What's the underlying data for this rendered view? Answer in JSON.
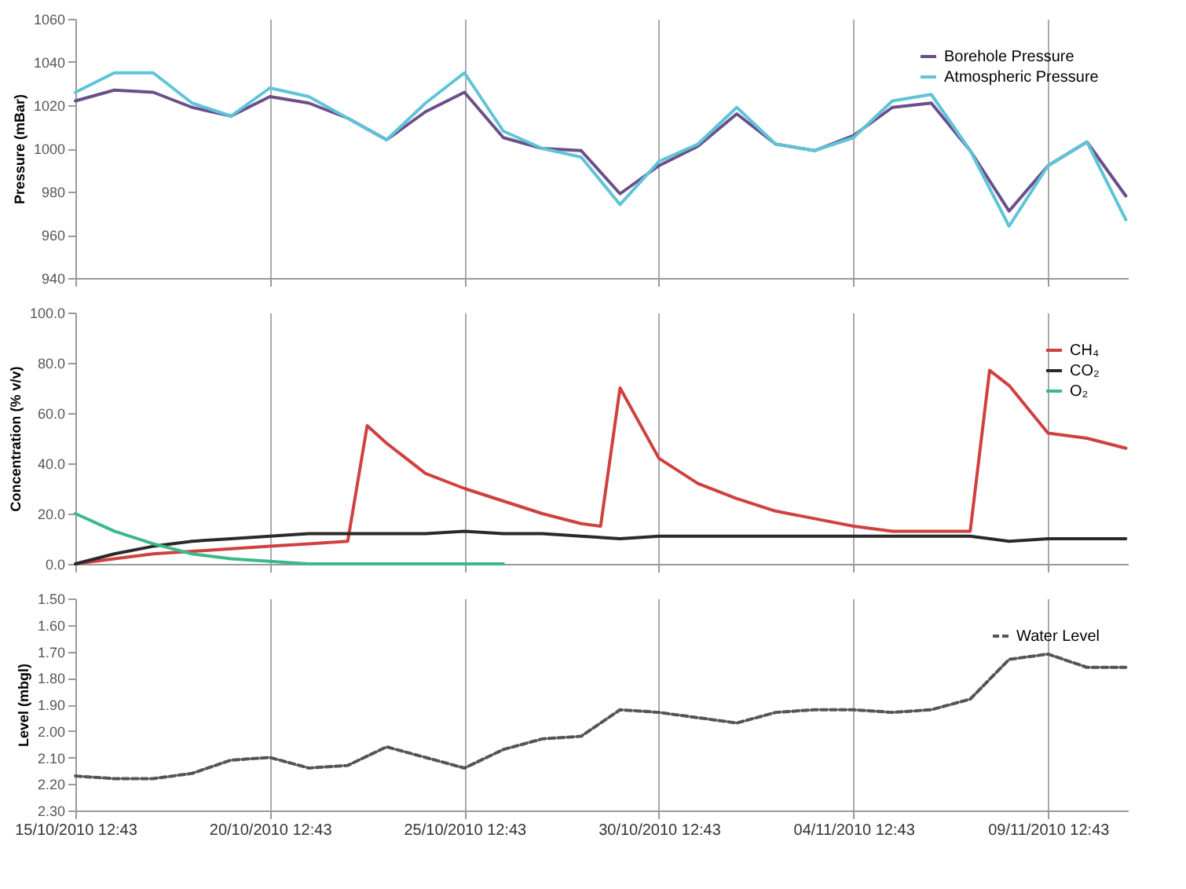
{
  "chart_data": [
    {
      "type": "line",
      "ylabel": "Pressure (mBar)",
      "grid": "x",
      "legend": "top right",
      "tick_labels": "y",
      "x": [
        "2010-10-15T12:43",
        "2010-10-16T12:43",
        "2010-10-17T12:43",
        "2010-10-18T12:43",
        "2010-10-19T12:43",
        "2010-10-20T12:43",
        "2010-10-21T12:43",
        "2010-10-22T12:43",
        "2010-10-23T12:43",
        "2010-10-24T12:43",
        "2010-10-25T12:43",
        "2010-10-26T12:43",
        "2010-10-27T12:43",
        "2010-10-28T12:43",
        "2010-10-29T12:43",
        "2010-10-30T12:43",
        "2010-10-31T12:43",
        "2010-11-01T12:43",
        "2010-11-02T12:43",
        "2010-11-03T12:43",
        "2010-11-04T12:43",
        "2010-11-05T12:43",
        "2010-11-06T12:43",
        "2010-11-07T12:43",
        "2010-11-08T12:43",
        "2010-11-09T12:43",
        "2010-11-10T12:43",
        "2010-11-11T12:43"
      ],
      "xlim": [
        "2010-10-15T12:43",
        "2010-11-11T14:00"
      ],
      "xticks": [
        {
          "value": "2010-10-15T12:43",
          "label": null
        },
        {
          "value": "2010-10-20T12:43",
          "label": null
        },
        {
          "value": "2010-10-25T12:43",
          "label": null
        },
        {
          "value": "2010-10-30T12:43",
          "label": null
        },
        {
          "value": "2010-11-04T12:43",
          "label": null
        },
        {
          "value": "2010-11-09T12:43",
          "label": null
        }
      ],
      "ylim": [
        940,
        1060
      ],
      "yticks": [
        940,
        960,
        980,
        1000,
        1020,
        1040,
        1060
      ],
      "series": [
        {
          "name": "Borehole Pressure",
          "color": "#6b4f8a",
          "values": [
            1022,
            1027,
            1026,
            1019,
            1015,
            1024,
            1021,
            1014,
            1004,
            1017,
            1026,
            1005,
            1000,
            999,
            979,
            992,
            1001,
            1016,
            1002,
            999,
            1006,
            1019,
            1021,
            999,
            971,
            992,
            1003,
            978
          ]
        },
        {
          "name": "Atmospheric Pressure",
          "color": "#5fc4d8",
          "values": [
            1026,
            1035,
            1035,
            1021,
            1015,
            1028,
            1024,
            1014,
            1004,
            1021,
            1035,
            1008,
            1000,
            996,
            974,
            994,
            1002,
            1019,
            1002,
            999,
            1005,
            1022,
            1025,
            999,
            964,
            992,
            1003,
            967
          ]
        }
      ]
    },
    {
      "type": "line",
      "ylabel": "Concentration (% v/v)",
      "grid": "x",
      "legend": "top right",
      "tick_labels": "y",
      "x": [
        "2010-10-15T12:43",
        "2010-10-16T12:43",
        "2010-10-17T12:43",
        "2010-10-18T12:43",
        "2010-10-19T12:43",
        "2010-10-20T12:43",
        "2010-10-21T12:43",
        "2010-10-22T12:43",
        "2010-10-23T12:43",
        "2010-10-24T12:43",
        "2010-10-25T12:43",
        "2010-10-26T12:43",
        "2010-10-27T12:43",
        "2010-10-28T12:43",
        "2010-10-29T12:43",
        "2010-10-30T12:43",
        "2010-10-31T12:43",
        "2010-11-01T12:43",
        "2010-11-02T12:43",
        "2010-11-03T12:43",
        "2010-11-04T12:43",
        "2010-11-05T12:43",
        "2010-11-06T12:43",
        "2010-11-07T12:43",
        "2010-11-08T12:43",
        "2010-11-09T12:43",
        "2010-11-10T12:43",
        "2010-11-11T12:43"
      ],
      "xlim": [
        "2010-10-15T12:43",
        "2010-11-11T14:00"
      ],
      "xticks": [
        {
          "value": "2010-10-15T12:43",
          "label": null
        },
        {
          "value": "2010-10-20T12:43",
          "label": null
        },
        {
          "value": "2010-10-25T12:43",
          "label": null
        },
        {
          "value": "2010-10-30T12:43",
          "label": null
        },
        {
          "value": "2010-11-04T12:43",
          "label": null
        },
        {
          "value": "2010-11-09T12:43",
          "label": null
        }
      ],
      "ylim": [
        0,
        100
      ],
      "yticks": [
        {
          "value": 0,
          "label": "0.0"
        },
        {
          "value": 20,
          "label": "20.0"
        },
        {
          "value": 40,
          "label": "40.0"
        },
        {
          "value": 60,
          "label": "60.0"
        },
        {
          "value": 80,
          "label": "80.0"
        },
        {
          "value": 100,
          "label": "100.0"
        }
      ],
      "series": [
        {
          "name": "CH₄",
          "color": "#d04040",
          "x": [
            "2010-10-15T12:43",
            "2010-10-16T12:43",
            "2010-10-17T12:43",
            "2010-10-18T12:43",
            "2010-10-19T12:43",
            "2010-10-20T12:43",
            "2010-10-21T12:43",
            "2010-10-22T12:43",
            "2010-10-23T00:43",
            "2010-10-23T12:43",
            "2010-10-24T12:43",
            "2010-10-25T12:43",
            "2010-10-26T12:43",
            "2010-10-27T12:43",
            "2010-10-28T12:43",
            "2010-10-29T00:43",
            "2010-10-29T12:43",
            "2010-10-30T12:43",
            "2010-10-31T12:43",
            "2010-11-01T12:43",
            "2010-11-02T12:43",
            "2010-11-03T12:43",
            "2010-11-04T12:43",
            "2010-11-05T12:43",
            "2010-11-06T12:43",
            "2010-11-07T12:43",
            "2010-11-08T00:43",
            "2010-11-08T12:43",
            "2010-11-09T12:43",
            "2010-11-10T12:43",
            "2010-11-11T12:43"
          ],
          "values": [
            0,
            2,
            4,
            5,
            6,
            7,
            8,
            9,
            55,
            48,
            36,
            30,
            25,
            20,
            16,
            15,
            70,
            42,
            32,
            26,
            21,
            18,
            15,
            13,
            13,
            13,
            77,
            71,
            52,
            50,
            46
          ]
        },
        {
          "name": "CO₂",
          "color": "#2a2a2a",
          "values": [
            0,
            4,
            7,
            9,
            10,
            11,
            12,
            12,
            12,
            12,
            13,
            12,
            12,
            11,
            10,
            11,
            11,
            11,
            11,
            11,
            11,
            11,
            11,
            11,
            9,
            10,
            10,
            10
          ]
        },
        {
          "name": "O₂",
          "color": "#3cb88a",
          "values": [
            20,
            13,
            8,
            4,
            2,
            1,
            0,
            0,
            0,
            0,
            0,
            0,
            null,
            null,
            null,
            null,
            null,
            null,
            null,
            null,
            null,
            null,
            null,
            null,
            null,
            null,
            null,
            null
          ]
        }
      ]
    },
    {
      "type": "line",
      "ylabel": "Level (mbgl)",
      "grid": "x",
      "legend": "top right",
      "x": [
        "2010-10-15T12:43",
        "2010-10-16T12:43",
        "2010-10-17T12:43",
        "2010-10-18T12:43",
        "2010-10-19T12:43",
        "2010-10-20T12:43",
        "2010-10-21T12:43",
        "2010-10-22T12:43",
        "2010-10-23T12:43",
        "2010-10-24T12:43",
        "2010-10-25T12:43",
        "2010-10-26T12:43",
        "2010-10-27T12:43",
        "2010-10-28T12:43",
        "2010-10-29T12:43",
        "2010-10-30T12:43",
        "2010-10-31T12:43",
        "2010-11-01T12:43",
        "2010-11-02T12:43",
        "2010-11-03T12:43",
        "2010-11-04T12:43",
        "2010-11-05T12:43",
        "2010-11-06T12:43",
        "2010-11-07T12:43",
        "2010-11-08T12:43",
        "2010-11-09T12:43",
        "2010-11-10T12:43",
        "2010-11-11T12:43"
      ],
      "xlim": [
        "2010-10-15T12:43",
        "2010-11-11T14:00"
      ],
      "xticks": [
        {
          "value": "2010-10-15T12:43",
          "label": "15/10/2010 12:43"
        },
        {
          "value": "2010-10-20T12:43",
          "label": "20/10/2010 12:43"
        },
        {
          "value": "2010-10-25T12:43",
          "label": "25/10/2010 12:43"
        },
        {
          "value": "2010-10-30T12:43",
          "label": "30/10/2010 12:43"
        },
        {
          "value": "2010-11-04T12:43",
          "label": "04/11/2010 12:43"
        },
        {
          "value": "2010-11-09T12:43",
          "label": "09/11/2010 12:43"
        }
      ],
      "ylim": [
        2.3,
        1.5
      ],
      "yticks": [
        {
          "value": 1.5,
          "label": "1.50"
        },
        {
          "value": 1.6,
          "label": "1.60"
        },
        {
          "value": 1.7,
          "label": "1.70"
        },
        {
          "value": 1.8,
          "label": "1.80"
        },
        {
          "value": 1.9,
          "label": "1.90"
        },
        {
          "value": 2.0,
          "label": "2.00"
        },
        {
          "value": 2.1,
          "label": "2.10"
        },
        {
          "value": 2.2,
          "label": "2.20"
        },
        {
          "value": 2.3,
          "label": "2.30"
        }
      ],
      "series": [
        {
          "name": "Water Level",
          "color": "#555555",
          "line_style": "dashed",
          "values": [
            2.17,
            2.18,
            2.18,
            2.16,
            2.11,
            2.1,
            2.14,
            2.13,
            2.06,
            2.1,
            2.14,
            2.07,
            2.03,
            2.02,
            1.92,
            1.93,
            1.95,
            1.97,
            1.93,
            1.92,
            1.92,
            1.93,
            1.92,
            1.88,
            1.73,
            1.71,
            1.76,
            1.76
          ]
        }
      ]
    }
  ]
}
